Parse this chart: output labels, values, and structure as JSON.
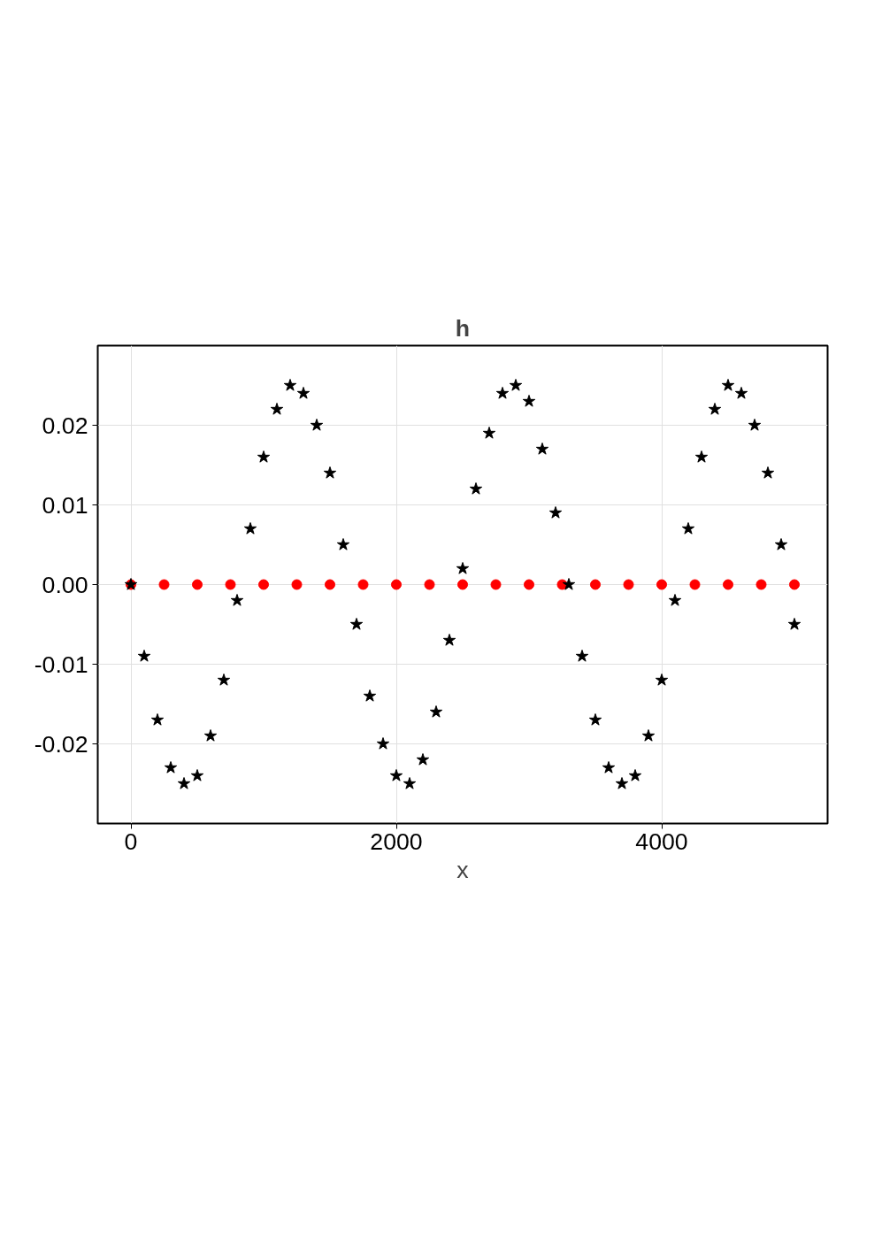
{
  "chart_data": {
    "type": "scatter",
    "title": "h",
    "xlabel": "x",
    "xlim": [
      -250,
      5250
    ],
    "ylim": [
      -0.03,
      0.03
    ],
    "xticks": [
      0,
      2000,
      4000
    ],
    "yticks": [
      {
        "value": -0.02,
        "label": "-0.02"
      },
      {
        "value": -0.01,
        "label": "-0.01"
      },
      {
        "value": 0,
        "label": "0.00"
      },
      {
        "value": 0.01,
        "label": "0.01"
      },
      {
        "value": 0.02,
        "label": "0.02"
      }
    ],
    "grid": true,
    "series": [
      {
        "color": "#ff0000",
        "marker": "circle",
        "x": [
          0,
          250,
          500,
          750,
          1000,
          1250,
          1500,
          1750,
          2000,
          2250,
          2500,
          2750,
          3000,
          3250,
          3500,
          3750,
          4000,
          4250,
          4500,
          4750,
          5000
        ],
        "values": [
          0,
          0,
          0,
          0,
          0,
          0,
          0,
          0,
          0,
          0,
          0,
          0,
          0,
          0,
          0,
          0,
          0,
          0,
          0,
          0,
          0
        ]
      },
      {
        "color": "#000000",
        "marker": "star",
        "x": [
          0,
          100,
          200,
          300,
          400,
          500,
          600,
          700,
          800,
          900,
          1000,
          1100,
          1200,
          1300,
          1400,
          1500,
          1600,
          1700,
          1800,
          1900,
          2000,
          2100,
          2200,
          2300,
          2400,
          2500,
          2600,
          2700,
          2800,
          2900,
          3000,
          3100,
          3200,
          3300,
          3400,
          3500,
          3600,
          3700,
          3800,
          3900,
          4000,
          4100,
          4200,
          4300,
          4400,
          4500,
          4600,
          4700,
          4800,
          4900,
          5000
        ],
        "values": [
          0,
          -0.009,
          -0.017,
          -0.023,
          -0.025,
          -0.024,
          -0.019,
          -0.012,
          -0.002,
          0.007,
          0.016,
          0.022,
          0.025,
          0.024,
          0.02,
          0.014,
          0.005,
          -0.005,
          -0.014,
          -0.02,
          -0.024,
          -0.025,
          -0.022,
          -0.016,
          -0.007,
          0.002,
          0.012,
          0.019,
          0.024,
          0.025,
          0.023,
          0.017,
          0.009,
          0,
          -0.009,
          -0.017,
          -0.023,
          -0.025,
          -0.024,
          -0.019,
          -0.012,
          -0.002,
          0.007,
          0.016,
          0.022,
          0.025,
          0.024,
          0.02,
          0.014,
          0.005,
          -0.005
        ]
      }
    ]
  }
}
